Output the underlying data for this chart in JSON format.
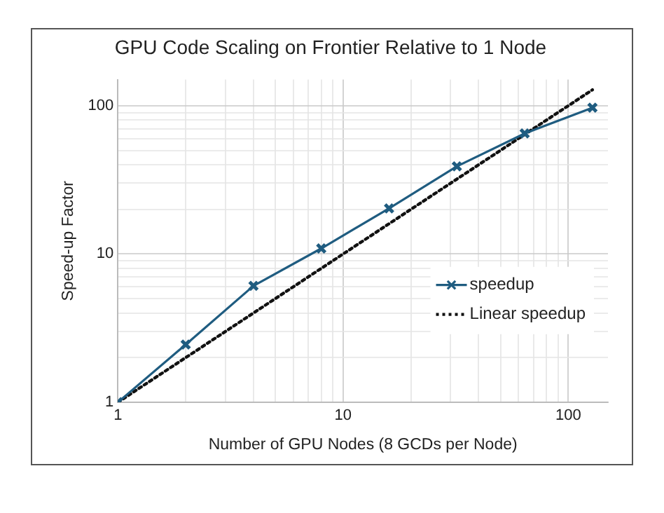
{
  "chart_data": {
    "type": "line",
    "title": "GPU Code Scaling on Frontier Relative to 1 Node",
    "xlabel": "Number of GPU Nodes (8 GCDs per Node)",
    "ylabel": "Speed-up Factor",
    "x": [
      1,
      2,
      4,
      8,
      16,
      32,
      64,
      128
    ],
    "series": [
      {
        "name": "speedup",
        "color": "#1f5c80",
        "values": [
          1,
          2.45,
          6.1,
          10.9,
          20.3,
          39,
          65,
          97
        ],
        "marker": "cross",
        "line_style": "solid"
      },
      {
        "name": "Linear speedup",
        "color": "#111111",
        "values": [
          1,
          2,
          4,
          8,
          16,
          32,
          64,
          128
        ],
        "marker": "none",
        "line_style": "dotted"
      }
    ],
    "log": "xy",
    "xlim": [
      1,
      150
    ],
    "ylim": [
      1,
      150
    ],
    "xticks": [
      1,
      {
        "value": 2,
        "label": null
      },
      {
        "value": 3,
        "label": null
      },
      {
        "value": 4,
        "label": null
      },
      {
        "value": 5,
        "label": null
      },
      {
        "value": 6,
        "label": null
      },
      {
        "value": 7,
        "label": null
      },
      {
        "value": 8,
        "label": null
      },
      {
        "value": 9,
        "label": null
      },
      10,
      {
        "value": 20,
        "label": null
      },
      {
        "value": 30,
        "label": null
      },
      {
        "value": 40,
        "label": null
      },
      {
        "value": 50,
        "label": null
      },
      {
        "value": 60,
        "label": null
      },
      {
        "value": 70,
        "label": null
      },
      {
        "value": 80,
        "label": null
      },
      {
        "value": 90,
        "label": null
      },
      100
    ],
    "yticks": [
      1,
      {
        "value": 2,
        "label": null
      },
      {
        "value": 3,
        "label": null
      },
      {
        "value": 4,
        "label": null
      },
      {
        "value": 5,
        "label": null
      },
      {
        "value": 6,
        "label": null
      },
      {
        "value": 7,
        "label": null
      },
      {
        "value": 8,
        "label": null
      },
      {
        "value": 9,
        "label": null
      },
      10,
      {
        "value": 20,
        "label": null
      },
      {
        "value": 30,
        "label": null
      },
      {
        "value": 40,
        "label": null
      },
      {
        "value": 50,
        "label": null
      },
      {
        "value": 60,
        "label": null
      },
      {
        "value": 70,
        "label": null
      },
      {
        "value": 80,
        "label": null
      },
      {
        "value": 90,
        "label": null
      },
      100
    ],
    "grid": true,
    "legend": "right"
  }
}
